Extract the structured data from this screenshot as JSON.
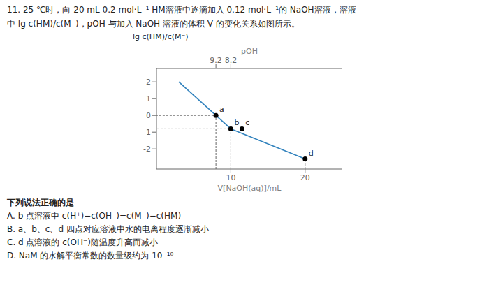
{
  "chart_data": {
    "type": "line",
    "title": "11. 25 ℃时，向 20 mL 0.2 mol·L⁻¹ HM溶液中逐滴加入 0.12 mol·L⁻¹的 NaOH溶液，溶液",
    "subtitle": "中 lg c(HM)/c(M⁻)，pOH 与加入 NaOH 溶液的体积 V 的变化关系如图所示。",
    "xlabel": "V[NaOH(aq)]/mL",
    "ylabel": "lg c(HM)/c(M⁻)",
    "x2label": "pOH",
    "xlim": [
      0,
      25
    ],
    "xticks": [
      10,
      20
    ],
    "x2lim": [
      0,
      25
    ],
    "x2ticks": [
      {
        "value": 8.0,
        "label": "9.2"
      },
      {
        "value": 10.0,
        "label": "8.2"
      }
    ],
    "ylim": [
      -3.2,
      2.8
    ],
    "yticks": [
      -2,
      -1,
      0,
      1,
      2
    ],
    "grid": false,
    "series": [
      {
        "type": "line",
        "x": [
          3,
          10
        ],
        "values": [
          2.0,
          -0.8
        ]
      },
      {
        "type": "line",
        "x": [
          10,
          20
        ],
        "values": [
          -0.8,
          -2.6
        ]
      },
      {
        "type": "line",
        "line_style": "dashed",
        "x": [
          8.0,
          8.0,
          0
        ],
        "values": [
          -3.2,
          0.0,
          0.0
        ]
      },
      {
        "type": "line",
        "line_style": "dashed",
        "x": [
          10.0,
          10.0,
          0
        ],
        "values": [
          -3.2,
          -0.8,
          -0.8
        ]
      },
      {
        "type": "line",
        "line_style": "dashed",
        "x": [
          20,
          20
        ],
        "values": [
          -3.2,
          -2.6
        ]
      },
      {
        "type": "scatter",
        "marker": "circle",
        "x": [
          8.0,
          10.0,
          11.5,
          20.0
        ],
        "values": [
          0.0,
          -0.8,
          -0.8,
          -2.6
        ],
        "point_labels": [
          "a",
          "b",
          "c",
          "d"
        ]
      }
    ],
    "question": "下列说法正确的是",
    "options": [
      "A. b 点溶液中 c(H⁺)−c(OH⁻)=c(M⁻)−c(HM)",
      "B. a、b、c、d 四点对应溶液中水的电离程度逐渐减小",
      "C. d 点溶液的 c(OH⁻)随温度升高而减小",
      "D. NaM 的水解平衡常数的数量级约为 10⁻¹⁰"
    ]
  }
}
